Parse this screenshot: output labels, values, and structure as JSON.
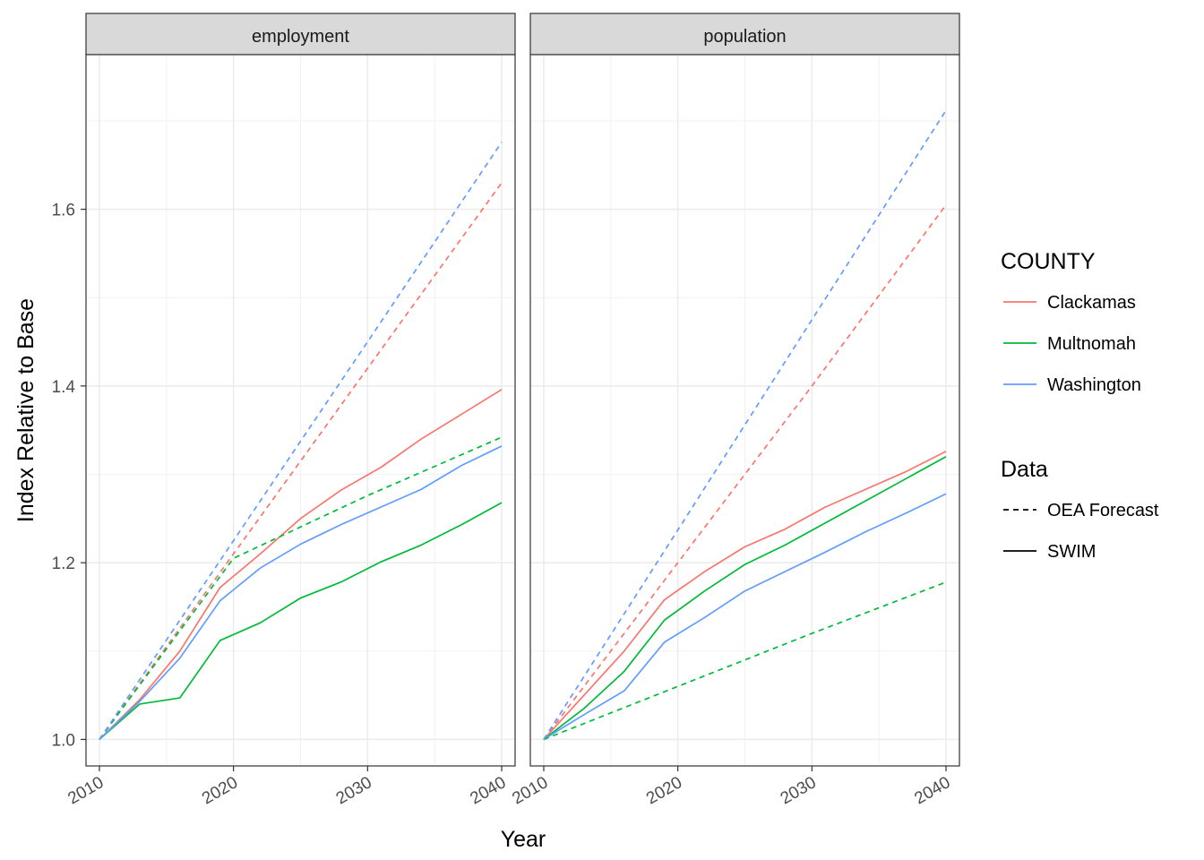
{
  "chart_data": {
    "type": "line",
    "xlabel": "Year",
    "ylabel": "Index Relative to Base",
    "xlim": [
      2009,
      2041
    ],
    "ylim": [
      0.97,
      1.775
    ],
    "x_ticks": [
      2010,
      2020,
      2030,
      2040
    ],
    "x_tick_labels": [
      "2010",
      "2020",
      "2030",
      "2040"
    ],
    "y_ticks": [
      1.0,
      1.2,
      1.4,
      1.6
    ],
    "y_tick_labels": [
      "1.0",
      "1.2",
      "1.4",
      "1.6"
    ],
    "grid": true,
    "legend_position": "right",
    "legend": {
      "color_title": "COUNTY",
      "linetype_title": "Data",
      "counties": [
        {
          "name": "Clackamas",
          "color": "#F8766D"
        },
        {
          "name": "Multnomah",
          "color": "#00BA38"
        },
        {
          "name": "Washington",
          "color": "#619CFF"
        }
      ],
      "data_types": [
        {
          "name": "OEA Forecast",
          "dash": "dashed"
        },
        {
          "name": "SWIM",
          "dash": "solid"
        }
      ]
    },
    "panels": [
      {
        "strip": "employment",
        "series": [
          {
            "county": "Clackamas",
            "data": "SWIM",
            "x": [
              2010,
              2013,
              2016,
              2019,
              2022,
              2025,
              2028,
              2031,
              2034,
              2037,
              2040
            ],
            "y": [
              1.0,
              1.045,
              1.1,
              1.172,
              1.21,
              1.25,
              1.282,
              1.308,
              1.34,
              1.368,
              1.396
            ]
          },
          {
            "county": "Multnomah",
            "data": "SWIM",
            "x": [
              2010,
              2013,
              2016,
              2019,
              2022,
              2025,
              2028,
              2031,
              2034,
              2037,
              2040
            ],
            "y": [
              1.0,
              1.04,
              1.047,
              1.112,
              1.132,
              1.16,
              1.178,
              1.201,
              1.22,
              1.243,
              1.268
            ]
          },
          {
            "county": "Washington",
            "data": "SWIM",
            "x": [
              2010,
              2013,
              2016,
              2019,
              2022,
              2025,
              2028,
              2031,
              2034,
              2037,
              2040
            ],
            "y": [
              1.0,
              1.043,
              1.092,
              1.157,
              1.194,
              1.221,
              1.243,
              1.263,
              1.283,
              1.31,
              1.332
            ]
          },
          {
            "county": "Clackamas",
            "data": "OEA Forecast",
            "x": [
              2010,
              2020,
              2030,
              2040
            ],
            "y": [
              1.0,
              1.21,
              1.42,
              1.63
            ]
          },
          {
            "county": "Multnomah",
            "data": "OEA Forecast",
            "x": [
              2010,
              2020,
              2030,
              2040
            ],
            "y": [
              1.0,
              1.205,
              1.276,
              1.342
            ]
          },
          {
            "county": "Washington",
            "data": "OEA Forecast",
            "x": [
              2010,
              2020,
              2030,
              2040
            ],
            "y": [
              1.0,
              1.225,
              1.45,
              1.676
            ]
          }
        ]
      },
      {
        "strip": "population",
        "series": [
          {
            "county": "Clackamas",
            "data": "SWIM",
            "x": [
              2010,
              2013,
              2016,
              2019,
              2022,
              2025,
              2028,
              2031,
              2034,
              2037,
              2040
            ],
            "y": [
              1.0,
              1.05,
              1.1,
              1.158,
              1.19,
              1.218,
              1.238,
              1.263,
              1.283,
              1.303,
              1.326
            ]
          },
          {
            "county": "Multnomah",
            "data": "SWIM",
            "x": [
              2010,
              2013,
              2016,
              2019,
              2022,
              2025,
              2028,
              2031,
              2034,
              2037,
              2040
            ],
            "y": [
              1.0,
              1.035,
              1.077,
              1.135,
              1.168,
              1.198,
              1.22,
              1.245,
              1.27,
              1.295,
              1.32
            ]
          },
          {
            "county": "Washington",
            "data": "SWIM",
            "x": [
              2010,
              2013,
              2016,
              2019,
              2022,
              2025,
              2028,
              2031,
              2034,
              2037,
              2040
            ],
            "y": [
              1.0,
              1.028,
              1.055,
              1.11,
              1.138,
              1.168,
              1.19,
              1.212,
              1.235,
              1.256,
              1.278
            ]
          },
          {
            "county": "Clackamas",
            "data": "OEA Forecast",
            "x": [
              2010,
              2020,
              2030,
              2040
            ],
            "y": [
              1.0,
              1.2,
              1.4,
              1.605
            ]
          },
          {
            "county": "Multnomah",
            "data": "OEA Forecast",
            "x": [
              2010,
              2020,
              2030,
              2040
            ],
            "y": [
              1.0,
              1.06,
              1.12,
              1.178
            ]
          },
          {
            "county": "Washington",
            "data": "OEA Forecast",
            "x": [
              2010,
              2020,
              2030,
              2040
            ],
            "y": [
              1.0,
              1.237,
              1.475,
              1.712
            ]
          }
        ]
      }
    ]
  }
}
